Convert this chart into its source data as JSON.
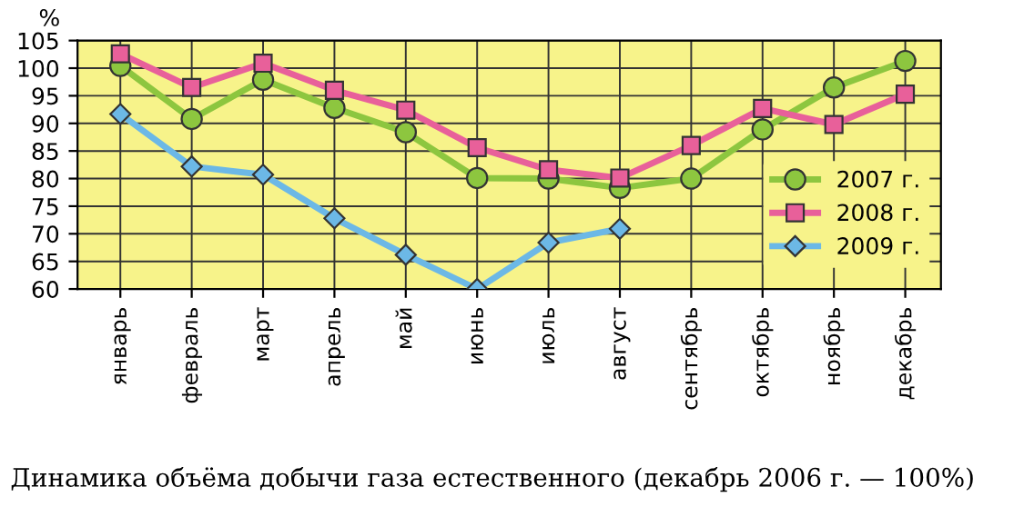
{
  "chart_data": {
    "type": "line",
    "title": "Динамика объёма добычи газа естественного (декабрь 2006 г. — 100%)",
    "ylabel": "%",
    "categories": [
      "январь",
      "февраль",
      "март",
      "апрель",
      "май",
      "июнь",
      "июль",
      "август",
      "сентябрь",
      "октябрь",
      "ноябрь",
      "декабрь"
    ],
    "series": [
      {
        "name": "2007 г.",
        "color": "#8dc63f",
        "marker": "circle",
        "values": [
          100.4,
          90.8,
          97.9,
          92.8,
          88.4,
          80.1,
          80,
          78.3,
          80,
          88.9,
          96.5,
          101.3
        ]
      },
      {
        "name": "2008 г.",
        "color": "#e8609a",
        "marker": "square",
        "values": [
          102.6,
          96.5,
          100.9,
          96,
          92.4,
          85.6,
          81.6,
          80.1,
          86,
          92.7,
          89.8,
          95.3
        ]
      },
      {
        "name": "2009 г.",
        "color": "#6cb8e6",
        "marker": "diamond",
        "values": [
          91.7,
          82.2,
          80.7,
          72.8,
          66.2,
          60,
          68.4,
          70.9,
          null,
          null,
          null,
          null
        ]
      }
    ],
    "ylim": [
      60,
      105
    ],
    "yticks": [
      60,
      65,
      70,
      75,
      80,
      85,
      90,
      95,
      100,
      105
    ],
    "grid": true,
    "legend": "right",
    "line_style": "solid"
  }
}
